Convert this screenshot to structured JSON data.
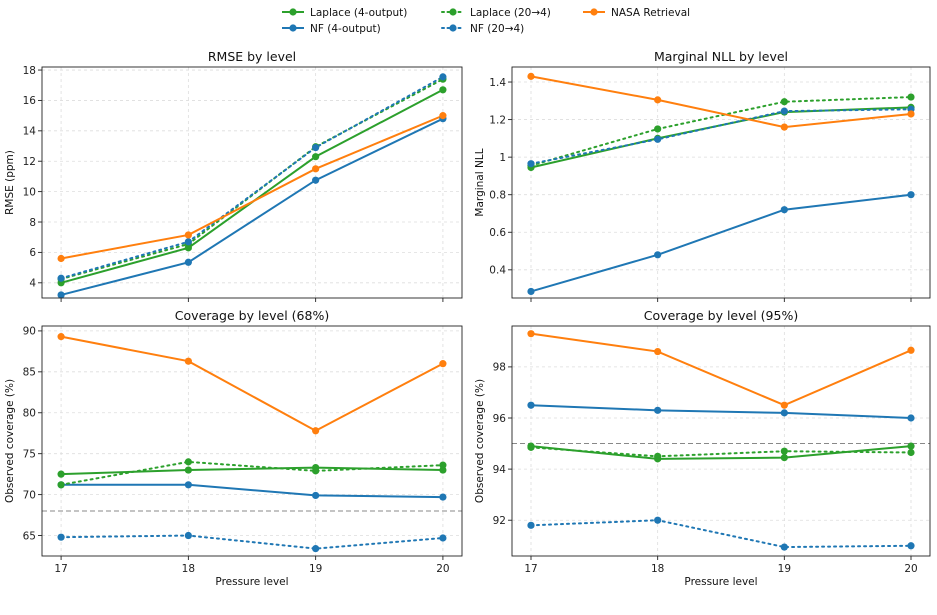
{
  "colors": {
    "laplace": "#2ca02c",
    "nf": "#1f77b4",
    "nasa": "#ff7f0e"
  },
  "legend": [
    {
      "label": "Laplace (4-output)",
      "color": "#2ca02c",
      "dash": "solid"
    },
    {
      "label": "NF (4-output)",
      "color": "#1f77b4",
      "dash": "solid"
    },
    {
      "label": "Laplace (20→4)",
      "color": "#2ca02c",
      "dash": "dotted"
    },
    {
      "label": "NF (20→4)",
      "color": "#1f77b4",
      "dash": "dotted"
    },
    {
      "label": "NASA Retrieval",
      "color": "#ff7f0e",
      "dash": "solid"
    }
  ],
  "chart_data": [
    {
      "type": "line",
      "title": "RMSE by level",
      "xlabel": "",
      "ylabel": "RMSE (ppm)",
      "x": [
        17,
        18,
        19,
        20
      ],
      "ylim": [
        3.0,
        18.2
      ],
      "yticks": [
        4,
        6,
        8,
        10,
        12,
        14,
        16,
        18
      ],
      "show_xticklabels": false,
      "series": [
        {
          "name": "Laplace (4-output)",
          "color": "#2ca02c",
          "dash": "solid",
          "values": [
            4.0,
            6.3,
            12.3,
            16.7
          ]
        },
        {
          "name": "NF (4-output)",
          "color": "#1f77b4",
          "dash": "solid",
          "values": [
            3.2,
            5.35,
            10.75,
            14.8
          ]
        },
        {
          "name": "Laplace (20→4)",
          "color": "#2ca02c",
          "dash": "dotted",
          "values": [
            4.25,
            6.55,
            12.95,
            17.4
          ]
        },
        {
          "name": "NF (20→4)",
          "color": "#1f77b4",
          "dash": "dotted",
          "values": [
            4.3,
            6.7,
            12.9,
            17.55
          ]
        },
        {
          "name": "NASA Retrieval",
          "color": "#ff7f0e",
          "dash": "solid",
          "values": [
            5.6,
            7.15,
            11.5,
            15.0
          ]
        }
      ]
    },
    {
      "type": "line",
      "title": "Marginal NLL by level",
      "xlabel": "",
      "ylabel": "Marginal NLL",
      "x": [
        17,
        18,
        19,
        20
      ],
      "ylim": [
        0.25,
        1.48
      ],
      "yticks": [
        0.4,
        0.6,
        0.8,
        1.0,
        1.2,
        1.4
      ],
      "show_xticklabels": false,
      "series": [
        {
          "name": "Laplace (4-output)",
          "color": "#2ca02c",
          "dash": "solid",
          "values": [
            0.945,
            1.1,
            1.24,
            1.265
          ]
        },
        {
          "name": "NF (4-output)",
          "color": "#1f77b4",
          "dash": "solid",
          "values": [
            0.285,
            0.48,
            0.72,
            0.8
          ]
        },
        {
          "name": "Laplace (20→4)",
          "color": "#2ca02c",
          "dash": "dotted",
          "values": [
            0.955,
            1.15,
            1.295,
            1.32
          ]
        },
        {
          "name": "NF (20→4)",
          "color": "#1f77b4",
          "dash": "dotted",
          "values": [
            0.965,
            1.095,
            1.245,
            1.255
          ]
        },
        {
          "name": "NASA Retrieval",
          "color": "#ff7f0e",
          "dash": "solid",
          "values": [
            1.43,
            1.305,
            1.16,
            1.23
          ]
        }
      ]
    },
    {
      "type": "line",
      "title": "Coverage by level (68%)",
      "xlabel": "Pressure level",
      "ylabel": "Observed coverage (%)",
      "x": [
        17,
        18,
        19,
        20
      ],
      "ylim": [
        62.5,
        90.6
      ],
      "yticks": [
        65,
        70,
        75,
        80,
        85,
        90
      ],
      "hline": 68,
      "show_xticklabels": true,
      "series": [
        {
          "name": "Laplace (4-output)",
          "color": "#2ca02c",
          "dash": "solid",
          "values": [
            72.5,
            73.0,
            73.3,
            73.0
          ]
        },
        {
          "name": "NF (4-output)",
          "color": "#1f77b4",
          "dash": "solid",
          "values": [
            71.2,
            71.2,
            69.9,
            69.7
          ]
        },
        {
          "name": "Laplace (20→4)",
          "color": "#2ca02c",
          "dash": "dotted",
          "values": [
            71.2,
            74.0,
            72.9,
            73.6
          ]
        },
        {
          "name": "NF (20→4)",
          "color": "#1f77b4",
          "dash": "dotted",
          "values": [
            64.8,
            65.0,
            63.4,
            64.7
          ]
        },
        {
          "name": "NASA Retrieval",
          "color": "#ff7f0e",
          "dash": "solid",
          "values": [
            89.3,
            86.3,
            77.8,
            86.0
          ]
        }
      ]
    },
    {
      "type": "line",
      "title": "Coverage by level (95%)",
      "xlabel": "Pressure level",
      "ylabel": "Observed coverage (%)",
      "x": [
        17,
        18,
        19,
        20
      ],
      "ylim": [
        90.6,
        99.6
      ],
      "yticks": [
        92,
        94,
        96,
        98
      ],
      "hline": 95,
      "show_xticklabels": true,
      "series": [
        {
          "name": "Laplace (4-output)",
          "color": "#2ca02c",
          "dash": "solid",
          "values": [
            94.9,
            94.4,
            94.45,
            94.9
          ]
        },
        {
          "name": "NF (4-output)",
          "color": "#1f77b4",
          "dash": "solid",
          "values": [
            96.5,
            96.3,
            96.2,
            96.0
          ]
        },
        {
          "name": "Laplace (20→4)",
          "color": "#2ca02c",
          "dash": "dotted",
          "values": [
            94.85,
            94.5,
            94.7,
            94.65
          ]
        },
        {
          "name": "NF (20→4)",
          "color": "#1f77b4",
          "dash": "dotted",
          "values": [
            91.8,
            92.0,
            90.95,
            91.0
          ]
        },
        {
          "name": "NASA Retrieval",
          "color": "#ff7f0e",
          "dash": "solid",
          "values": [
            99.3,
            98.6,
            96.5,
            98.65
          ]
        }
      ]
    }
  ]
}
